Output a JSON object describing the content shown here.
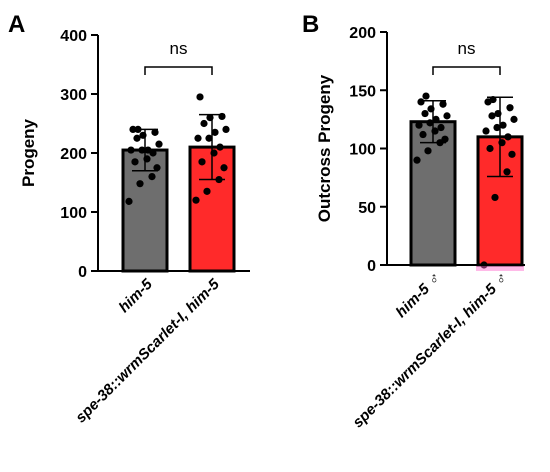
{
  "chart_data": [
    {
      "panel": "A",
      "type": "bar",
      "ylabel": "Progeny",
      "ylim": [
        0,
        400
      ],
      "yticks": [
        0,
        100,
        200,
        300,
        400
      ],
      "categories": [
        "him-5",
        "spe-38::wrmScarlet-I, him-5"
      ],
      "bar_colors": [
        "#707070",
        "#ff2a2a"
      ],
      "means": [
        205,
        210
      ],
      "error_low": [
        170,
        155
      ],
      "error_high": [
        240,
        265
      ],
      "points": [
        [
          118,
          148,
          160,
          175,
          185,
          190,
          200,
          205,
          205,
          205,
          215,
          225,
          230,
          235,
          240,
          240
        ],
        [
          120,
          135,
          155,
          175,
          185,
          200,
          210,
          225,
          225,
          235,
          240,
          250,
          260,
          262,
          295
        ]
      ],
      "significance": "ns"
    },
    {
      "panel": "B",
      "type": "bar",
      "ylabel": "Outcross Progeny",
      "ylim": [
        0,
        200
      ],
      "yticks": [
        0,
        50,
        100,
        150,
        200
      ],
      "categories": [
        "him-5 ♂",
        "spe-38::wrmScarlet-I, him-5 ♂"
      ],
      "bar_colors": [
        "#707070",
        "#ff2a2a"
      ],
      "means": [
        123,
        110
      ],
      "error_low": [
        105,
        76
      ],
      "error_high": [
        141,
        144
      ],
      "points": [
        [
          90,
          98,
          105,
          108,
          112,
          115,
          118,
          120,
          122,
          125,
          128,
          130,
          134,
          138,
          140,
          145
        ],
        [
          0,
          58,
          80,
          95,
          100,
          105,
          110,
          115,
          118,
          120,
          125,
          128,
          130,
          135,
          140,
          142
        ]
      ],
      "significance": "ns"
    }
  ]
}
